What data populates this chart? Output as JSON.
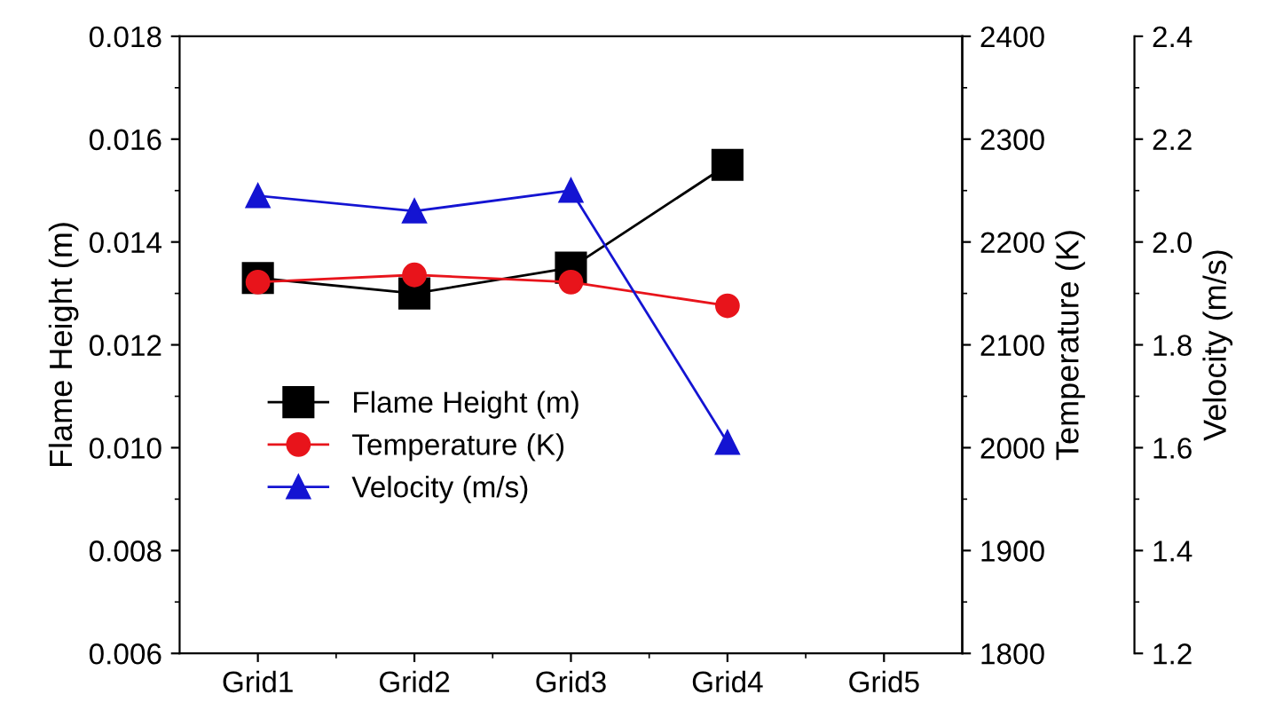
{
  "chart_data": {
    "type": "line",
    "categories": [
      "Grid1",
      "Grid2",
      "Grid3",
      "Grid4",
      "Grid5"
    ],
    "ylabel": "Flame Height (m)",
    "y2label": "Temperature (K)",
    "y3label": "Velocity (m/s)",
    "ylim": [
      0.006,
      0.018
    ],
    "yticks": [
      {
        "value": 0.006,
        "label": "0.006"
      },
      {
        "value": 0.008,
        "label": "0.008"
      },
      {
        "value": 0.01,
        "label": "0.010"
      },
      {
        "value": 0.012,
        "label": "0.012"
      },
      {
        "value": 0.014,
        "label": "0.014"
      },
      {
        "value": 0.016,
        "label": "0.016"
      },
      {
        "value": 0.018,
        "label": "0.018"
      }
    ],
    "y2lim": [
      1800,
      2400
    ],
    "y2ticks": [
      1800,
      1900,
      2000,
      2100,
      2200,
      2300,
      2400
    ],
    "y3lim": [
      1.2,
      2.4
    ],
    "y3ticks": [
      {
        "value": 1.2,
        "label": "1.2"
      },
      {
        "value": 1.4,
        "label": "1.4"
      },
      {
        "value": 1.6,
        "label": "1.6"
      },
      {
        "value": 1.8,
        "label": "1.8"
      },
      {
        "value": 2.0,
        "label": "2.0"
      },
      {
        "value": 2.2,
        "label": "2.2"
      },
      {
        "value": 2.4,
        "label": "2.4"
      }
    ],
    "grid": false,
    "legend": "bottom left",
    "line_style": "solid",
    "series": [
      {
        "name": "Flame Height (m)",
        "color": "#000000",
        "marker": "square",
        "values": [
          0.0133,
          0.013,
          0.0135,
          0.0155,
          null
        ]
      },
      {
        "name": "Temperature (K)",
        "color": "#e8141b",
        "marker": "circle",
        "axis": "y2",
        "values": [
          2161,
          2168,
          2161,
          2138,
          null
        ]
      },
      {
        "name": "Velocity (m/s)",
        "color": "#1414d2",
        "marker": "triangle",
        "axis": "y3",
        "values": [
          2.09,
          2.06,
          2.1,
          1.61,
          null
        ]
      }
    ]
  }
}
